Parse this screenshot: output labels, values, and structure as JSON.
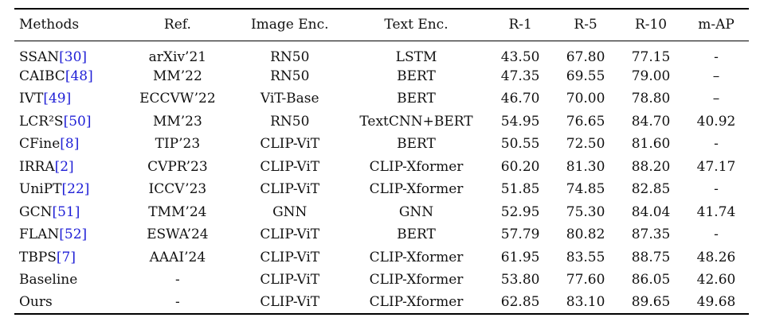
{
  "table": {
    "headers": [
      "Methods",
      "Ref.",
      "Image Enc.",
      "Text Enc.",
      "R-1",
      "R-5",
      "R-10",
      "m-AP"
    ],
    "rows": [
      {
        "method": "SSAN",
        "cite": "[30]",
        "ref": "arXiv’21",
        "image_enc": "RN50",
        "text_enc": "LSTM",
        "r1": "43.50",
        "r5": "67.80",
        "r10": "77.15",
        "map": "-"
      },
      {
        "method": "CAIBC",
        "cite": "[48]",
        "ref": "MM’22",
        "image_enc": "RN50",
        "text_enc": "BERT",
        "r1": "47.35",
        "r5": "69.55",
        "r10": "79.00",
        "map": "–"
      },
      {
        "method": "IVT",
        "cite": "[49]",
        "ref": "ECCVW’22",
        "image_enc": "ViT-Base",
        "text_enc": "BERT",
        "r1": "46.70",
        "r5": "70.00",
        "r10": "78.80",
        "map": "–"
      },
      {
        "method": "LCR²S",
        "cite": "[50]",
        "ref": "MM’23",
        "image_enc": "RN50",
        "text_enc": "TextCNN+BERT",
        "r1": "54.95",
        "r5": "76.65",
        "r10": "84.70",
        "map": "40.92"
      },
      {
        "method": "CFine",
        "cite": "[8]",
        "ref": "TIP’23",
        "image_enc": "CLIP-ViT",
        "text_enc": "BERT",
        "r1": "50.55",
        "r5": "72.50",
        "r10": "81.60",
        "map": "-"
      },
      {
        "method": "IRRA",
        "cite": "[2]",
        "ref": "CVPR’23",
        "image_enc": "CLIP-ViT",
        "text_enc": "CLIP-Xformer",
        "r1": "60.20",
        "r5": "81.30",
        "r10": "88.20",
        "map": "47.17"
      },
      {
        "method": "UniPT",
        "cite": "[22]",
        "ref": "ICCV’23",
        "image_enc": "CLIP-ViT",
        "text_enc": "CLIP-Xformer",
        "r1": "51.85",
        "r5": "74.85",
        "r10": "82.85",
        "map": "-"
      },
      {
        "method": "GCN",
        "cite": "[51]",
        "ref": "TMM’24",
        "image_enc": "GNN",
        "text_enc": "GNN",
        "r1": "52.95",
        "r5": "75.30",
        "r10": "84.04",
        "map": "41.74"
      },
      {
        "method": "FLAN",
        "cite": "[52]",
        "ref": "ESWA’24",
        "image_enc": "CLIP-ViT",
        "text_enc": "BERT",
        "r1": "57.79",
        "r5": "80.82",
        "r10": "87.35",
        "map": "-"
      },
      {
        "method": "TBPS",
        "cite": "[7]",
        "ref": "AAAI’24",
        "image_enc": "CLIP-ViT",
        "text_enc": "CLIP-Xformer",
        "r1": "61.95",
        "r5": "83.55",
        "r10": "88.75",
        "map": "48.26"
      },
      {
        "method": "Baseline",
        "cite": "",
        "ref": "-",
        "image_enc": "CLIP-ViT",
        "text_enc": "CLIP-Xformer",
        "r1": "53.80",
        "r5": "77.60",
        "r10": "86.05",
        "map": "42.60"
      },
      {
        "method": "Ours",
        "cite": "",
        "ref": "-",
        "image_enc": "CLIP-ViT",
        "text_enc": "CLIP-Xformer",
        "r1": "62.85",
        "r5": "83.10",
        "r10": "89.65",
        "map": "49.68"
      }
    ]
  }
}
